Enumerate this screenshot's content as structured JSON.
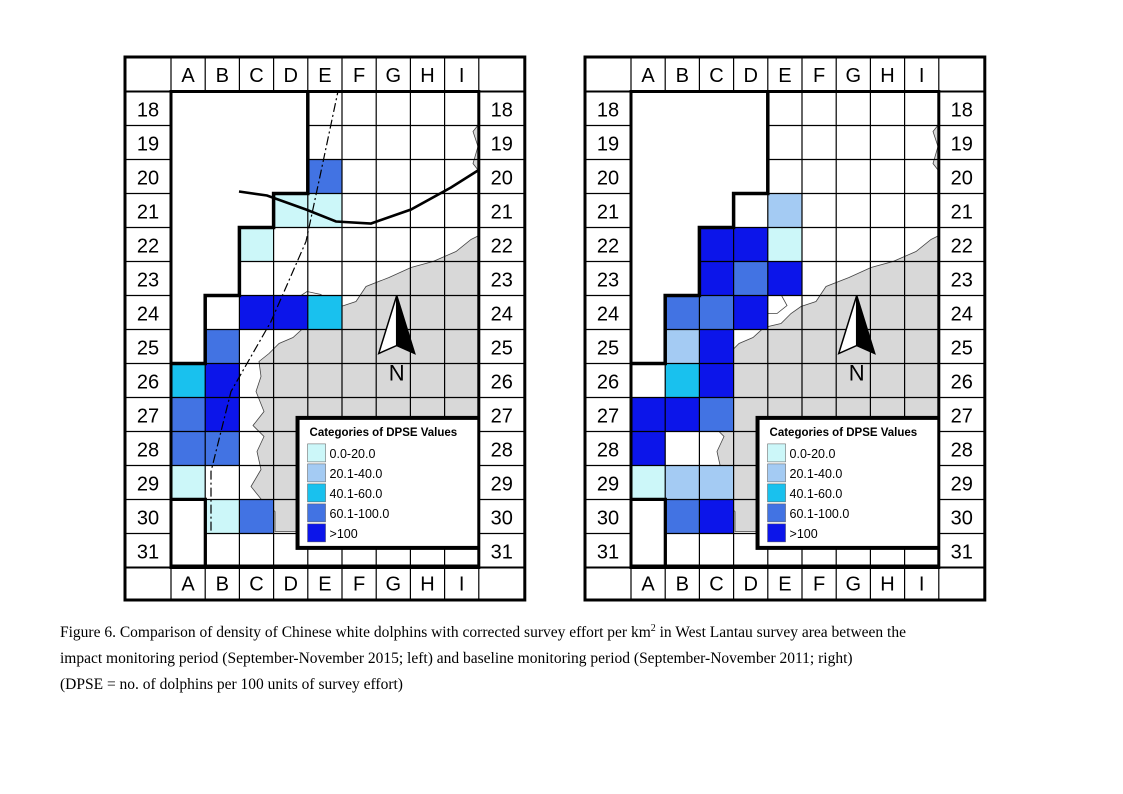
{
  "columns": [
    "A",
    "B",
    "C",
    "D",
    "E",
    "F",
    "G",
    "H",
    "I"
  ],
  "rows": [
    "18",
    "19",
    "20",
    "21",
    "22",
    "23",
    "24",
    "25",
    "26",
    "27",
    "28",
    "29",
    "30",
    "31"
  ],
  "compass_label": "N",
  "legend": {
    "title": "Categories of DPSE Values",
    "items": [
      {
        "label": "0.0-20.0",
        "color": "#ccf7f9"
      },
      {
        "label": "20.1-40.0",
        "color": "#a4cbf3"
      },
      {
        "label": "40.1-60.0",
        "color": "#19c1ee"
      },
      {
        "label": "60.1-100.0",
        "color": "#4273e3"
      },
      {
        "label": ">100",
        "color": "#0c15ea"
      }
    ]
  },
  "colors": {
    "land": "#d8d8d8",
    "grid": "#000000",
    "white": "#ffffff"
  },
  "maps": [
    {
      "panel": "left",
      "period": "impact monitoring period (September-November 2015)",
      "shaded_cells": [
        {
          "cell": "E20",
          "category": 3
        },
        {
          "cell": "E21",
          "category": 0
        },
        {
          "cell": "D21",
          "category": 0
        },
        {
          "cell": "C22",
          "category": 0
        },
        {
          "cell": "C24",
          "category": 4
        },
        {
          "cell": "D24",
          "category": 4
        },
        {
          "cell": "E24",
          "category": 2
        },
        {
          "cell": "B25",
          "category": 3
        },
        {
          "cell": "A26",
          "category": 2
        },
        {
          "cell": "B26",
          "category": 4
        },
        {
          "cell": "A27",
          "category": 3
        },
        {
          "cell": "B27",
          "category": 4
        },
        {
          "cell": "A28",
          "category": 3
        },
        {
          "cell": "B28",
          "category": 3
        },
        {
          "cell": "A29",
          "category": 0
        },
        {
          "cell": "B30",
          "category": 0
        },
        {
          "cell": "C30",
          "category": 3
        }
      ]
    },
    {
      "panel": "right",
      "period": "baseline monitoring period (September-November 2011)",
      "shaded_cells": [
        {
          "cell": "E21",
          "category": 1
        },
        {
          "cell": "C22",
          "category": 4
        },
        {
          "cell": "D22",
          "category": 4
        },
        {
          "cell": "E22",
          "category": 0
        },
        {
          "cell": "C23",
          "category": 4
        },
        {
          "cell": "D23",
          "category": 3
        },
        {
          "cell": "E23",
          "category": 4
        },
        {
          "cell": "B24",
          "category": 3
        },
        {
          "cell": "C24",
          "category": 3
        },
        {
          "cell": "D24",
          "category": 4
        },
        {
          "cell": "B25",
          "category": 1
        },
        {
          "cell": "C25",
          "category": 4
        },
        {
          "cell": "B26",
          "category": 2
        },
        {
          "cell": "C26",
          "category": 4
        },
        {
          "cell": "A27",
          "category": 4
        },
        {
          "cell": "B27",
          "category": 4
        },
        {
          "cell": "C27",
          "category": 3
        },
        {
          "cell": "A28",
          "category": 4
        },
        {
          "cell": "A29",
          "category": 0
        },
        {
          "cell": "B29",
          "category": 1
        },
        {
          "cell": "C29",
          "category": 1
        },
        {
          "cell": "B30",
          "category": 3
        },
        {
          "cell": "C30",
          "category": 4
        }
      ]
    }
  ],
  "caption": {
    "line1_a": "Figure 6.  Comparison of density of Chinese white dolphins with corrected survey effort per km",
    "line1_sup": "2",
    "line1_b": " in West Lantau survey area between the",
    "line2": "impact monitoring period (September-November 2015; left) and baseline monitoring period (September-November 2011; right)",
    "line3": "(DPSE = no. of dolphins per 100 units of survey effort)"
  }
}
